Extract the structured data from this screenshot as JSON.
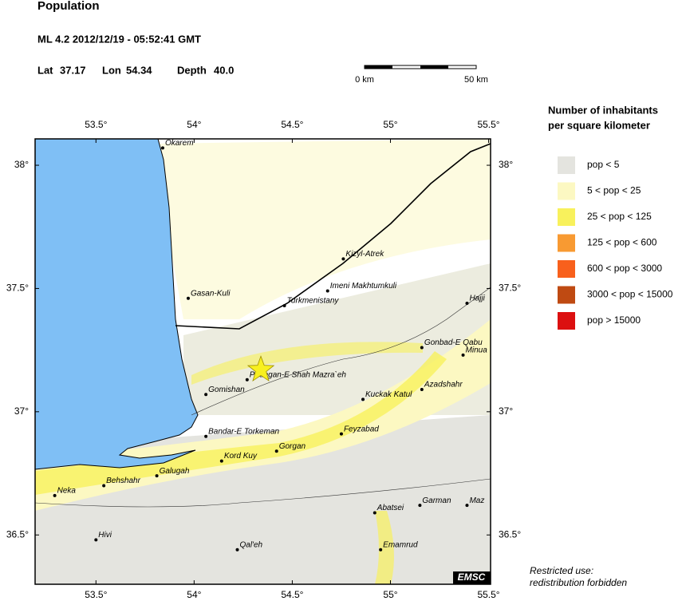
{
  "header": {
    "title": "Population",
    "event": "ML 4.2  2012/12/19 - 05:52:41 GMT",
    "lat_label": "Lat",
    "lat": 37.17,
    "lon_label": "Lon",
    "lon": 54.34,
    "depth_label": "Depth",
    "depth": "40.0"
  },
  "scale": {
    "start": "0 km",
    "end": "50 km"
  },
  "map": {
    "xlim": [
      53.19,
      55.51
    ],
    "ylim": [
      36.3,
      38.107
    ],
    "xticks": [
      {
        "value": 53.5,
        "label": "53.5°"
      },
      {
        "value": 54,
        "label": "54°"
      },
      {
        "value": 54.5,
        "label": "54.5°"
      },
      {
        "value": 55,
        "label": "55°"
      },
      {
        "value": 55.5,
        "label": "55.5°"
      }
    ],
    "yticks": [
      {
        "value": 36.5,
        "label": "36.5°"
      },
      {
        "value": 37,
        "label": "37°"
      },
      {
        "value": 37.5,
        "label": "37.5°"
      },
      {
        "value": 38,
        "label": "38°"
      }
    ],
    "cities": [
      {
        "name": "Okarem",
        "lon": 53.84,
        "lat": 38.07
      },
      {
        "name": "Gasan-Kuli",
        "lon": 53.97,
        "lat": 37.46
      },
      {
        "name": "Kizyl-Atrek",
        "lon": 54.76,
        "lat": 37.62
      },
      {
        "name": "Imeni Makhtumkuli",
        "lon": 54.68,
        "lat": 37.49
      },
      {
        "name": "Turkmenistany",
        "lon": 54.46,
        "lat": 37.43
      },
      {
        "name": "Hajji",
        "lon": 55.39,
        "lat": 37.44
      },
      {
        "name": "Gonbad-E Qabu",
        "lon": 55.16,
        "lat": 37.26
      },
      {
        "name": "Minua",
        "lon": 55.37,
        "lat": 37.23
      },
      {
        "name": "Padegan-E Shah Mazra`eh",
        "lon": 54.27,
        "lat": 37.13
      },
      {
        "name": "Gomishan",
        "lon": 54.06,
        "lat": 37.07
      },
      {
        "name": "Azadshahr",
        "lon": 55.16,
        "lat": 37.09
      },
      {
        "name": "Kuckak Katul",
        "lon": 54.86,
        "lat": 37.05
      },
      {
        "name": "Bandar-E Torkeman",
        "lon": 54.06,
        "lat": 36.9
      },
      {
        "name": "Feyzabad",
        "lon": 54.75,
        "lat": 36.91
      },
      {
        "name": "Gorgan",
        "lon": 54.42,
        "lat": 36.84
      },
      {
        "name": "Kord Kuy",
        "lon": 54.14,
        "lat": 36.8
      },
      {
        "name": "Galugah",
        "lon": 53.81,
        "lat": 36.74
      },
      {
        "name": "Behshahr",
        "lon": 53.54,
        "lat": 36.7
      },
      {
        "name": "Neka",
        "lon": 53.29,
        "lat": 36.66
      },
      {
        "name": "Garman",
        "lon": 55.15,
        "lat": 36.62
      },
      {
        "name": "Abatsei",
        "lon": 54.92,
        "lat": 36.59
      },
      {
        "name": "Maz",
        "lon": 55.39,
        "lat": 36.62
      },
      {
        "name": "Hivi",
        "lon": 53.5,
        "lat": 36.48
      },
      {
        "name": "Qal'eh",
        "lon": 54.22,
        "lat": 36.44
      },
      {
        "name": "Emamrud",
        "lon": 54.95,
        "lat": 36.44
      }
    ],
    "credit": "EMSC"
  },
  "legend": {
    "title_lines": [
      "Number of inhabitants",
      "per square kilometer"
    ],
    "items": [
      {
        "label": "pop < 5",
        "color": "#e4e4df"
      },
      {
        "label": "5 < pop < 25",
        "color": "#fcf8c2"
      },
      {
        "label": "25 < pop < 125",
        "color": "#f8f15c"
      },
      {
        "label": "125 < pop < 600",
        "color": "#f89a32"
      },
      {
        "label": "600 < pop < 3000",
        "color": "#f8601c"
      },
      {
        "label": "3000 < pop < 15000",
        "color": "#bf4a12"
      },
      {
        "label": "pop > 15000",
        "color": "#dc1010"
      }
    ]
  },
  "note": [
    "Restricted use:",
    "redistribution forbidden"
  ]
}
